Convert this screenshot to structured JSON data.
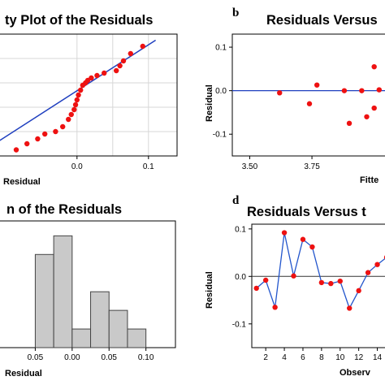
{
  "panels": {
    "a": {
      "title": "ty Plot of the Residuals",
      "xlabel": "Residual"
    },
    "b": {
      "letter": "b",
      "title": "Residuals Versus",
      "ylabel": "Residual",
      "xlabel": "Fitte"
    },
    "c": {
      "title": "n of the Residuals",
      "xlabel": "Residual"
    },
    "d": {
      "letter": "d",
      "title": "Residuals Versus t",
      "ylabel": "Residual",
      "xlabel": "Observ"
    }
  },
  "chart_data": [
    {
      "id": "a",
      "type": "scatter",
      "xticks": [
        "0.0",
        "0.1"
      ],
      "xlim": [
        -0.11,
        0.14
      ],
      "x": [
        -0.085,
        -0.07,
        -0.055,
        -0.045,
        -0.03,
        -0.02,
        -0.012,
        -0.008,
        -0.004,
        -0.002,
        0.0,
        0.002,
        0.005,
        0.008,
        0.012,
        0.015,
        0.02,
        0.028,
        0.038,
        0.055,
        0.06,
        0.065,
        0.075,
        0.092
      ],
      "rank": [
        0.05,
        0.1,
        0.14,
        0.18,
        0.2,
        0.24,
        0.3,
        0.34,
        0.38,
        0.42,
        0.46,
        0.5,
        0.54,
        0.58,
        0.6,
        0.62,
        0.64,
        0.66,
        0.68,
        0.7,
        0.74,
        0.78,
        0.84,
        0.9
      ],
      "fit_line": {
        "x": [
          -0.11,
          0.11
        ],
        "rank": [
          0.12,
          0.95
        ]
      },
      "dot_color": "#ee1111",
      "line_color": "#1f3fbf",
      "grid": true
    },
    {
      "id": "b",
      "type": "scatter",
      "xticks": [
        "3.50",
        "3.75"
      ],
      "yticks": [
        "0.1",
        "0.0",
        "-0.1"
      ],
      "xlim": [
        3.43,
        4.05
      ],
      "ylim": [
        -0.15,
        0.13
      ],
      "x": [
        3.62,
        3.74,
        3.77,
        3.88,
        3.9,
        3.95,
        3.97,
        4.0,
        4.0,
        4.02
      ],
      "y": [
        -0.005,
        -0.03,
        0.013,
        0.0,
        -0.075,
        0.0,
        -0.06,
        0.055,
        -0.04,
        0.002
      ],
      "reference_line": 0.0,
      "dot_color": "#ee1111",
      "line_color": "#1f3fbf"
    },
    {
      "id": "c",
      "type": "bar",
      "xticks": [
        "0.05",
        "0.00",
        "0.05",
        "0.10"
      ],
      "xlim": [
        -0.1,
        0.14
      ],
      "bins": [
        [
          -0.05,
          -0.025
        ],
        [
          -0.025,
          0.0
        ],
        [
          0.0,
          0.025
        ],
        [
          0.025,
          0.05
        ],
        [
          0.05,
          0.075
        ],
        [
          0.075,
          0.1
        ]
      ],
      "counts": [
        5,
        6,
        1,
        3,
        2,
        1
      ],
      "ylim": [
        0,
        6.8
      ],
      "bar_color": "#c9c9c9",
      "edge_color": "#444444"
    },
    {
      "id": "d",
      "type": "line",
      "xticks": [
        "2",
        "4",
        "6",
        "8",
        "10",
        "12",
        "14"
      ],
      "yticks": [
        "0.1",
        "0.0",
        "-0.1"
      ],
      "xlim": [
        0.5,
        15
      ],
      "ylim": [
        -0.15,
        0.11
      ],
      "x": [
        1,
        2,
        3,
        4,
        5,
        6,
        7,
        8,
        9,
        10,
        11,
        12,
        13,
        14,
        15
      ],
      "y": [
        -0.025,
        -0.008,
        -0.065,
        0.092,
        0.001,
        0.078,
        0.062,
        -0.013,
        -0.015,
        -0.01,
        -0.067,
        -0.03,
        0.008,
        0.025,
        0.04
      ],
      "reference_line": 0.0,
      "dot_color": "#ee1111",
      "line_color": "#2255cc",
      "ref_color": "#333333"
    }
  ]
}
